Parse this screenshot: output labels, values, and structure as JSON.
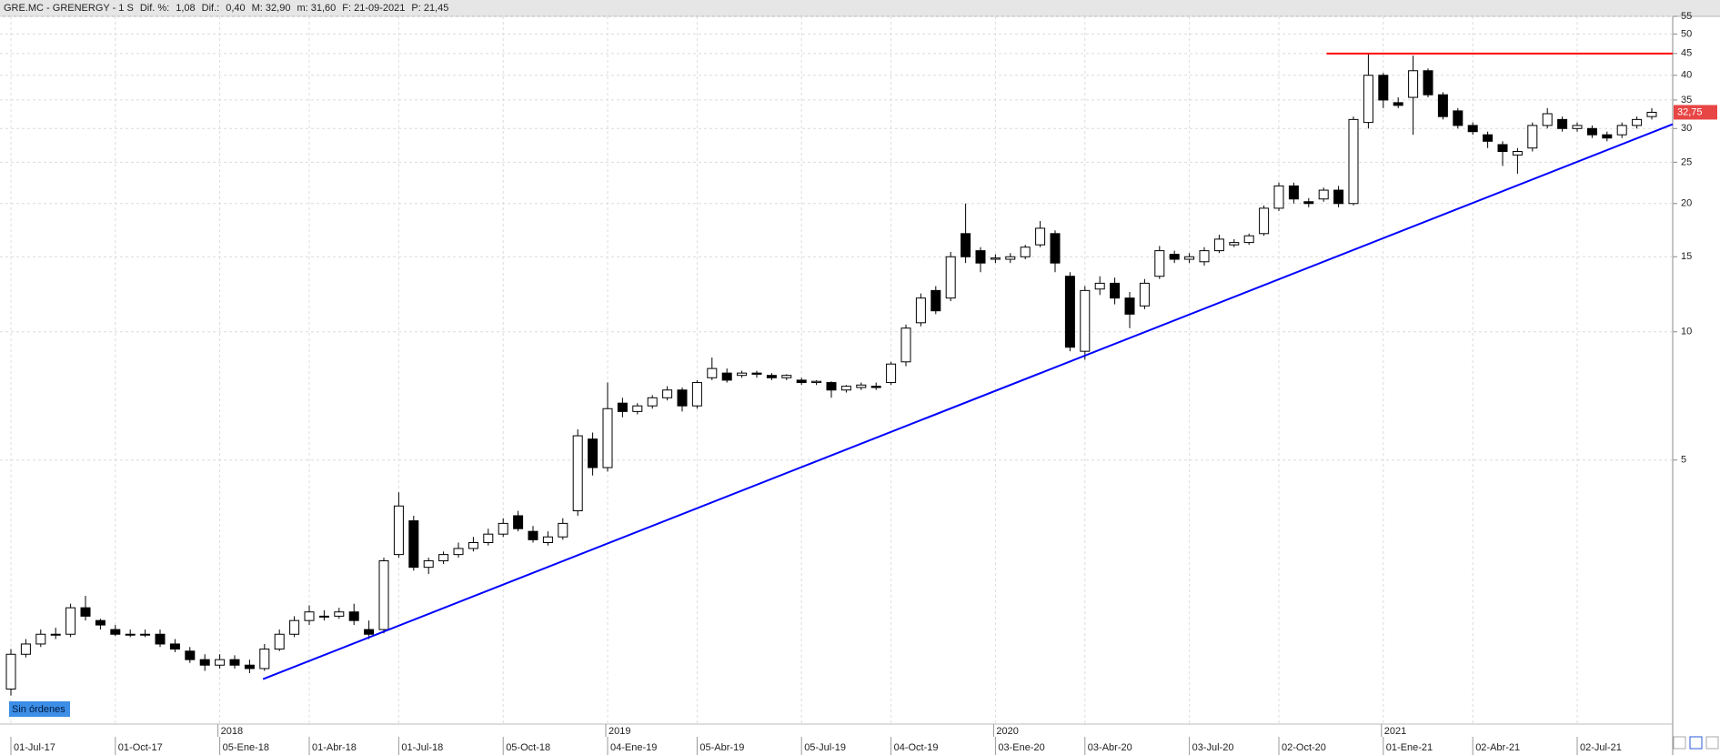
{
  "header": {
    "items": [
      {
        "text": "GRE.MC - GRENERGY -  1 S",
        "color": "#000000"
      },
      {
        "text": "Dif. %:",
        "color": "#000000"
      },
      {
        "text": "1,08",
        "color": "#3a7bd5"
      },
      {
        "text": "Dif.:",
        "color": "#000000"
      },
      {
        "text": "0,40",
        "color": "#3a7bd5"
      },
      {
        "text": "M: 32,90",
        "color": "#000000"
      },
      {
        "text": "m: 31,60",
        "color": "#000000"
      },
      {
        "text": "F: 21-09-2021",
        "color": "#000000"
      },
      {
        "text": "P: 21,45",
        "color": "#e02020"
      }
    ]
  },
  "controls": {
    "orders_button": "Sin órdenes"
  },
  "chart_data": {
    "type": "candlestick",
    "log_scale": true,
    "grid": true,
    "candle_colors": {
      "up": "#ffffff",
      "down": "#000000",
      "outline": "#000000"
    },
    "categories": [
      "01-Jul-17",
      null,
      null,
      null,
      null,
      null,
      null,
      "01-Oct-17",
      null,
      null,
      null,
      null,
      null,
      null,
      "05-Ene-18",
      null,
      null,
      null,
      null,
      null,
      "01-Abr-18",
      null,
      null,
      null,
      null,
      null,
      "01-Jul-18",
      null,
      null,
      null,
      null,
      null,
      null,
      "05-Oct-18",
      null,
      null,
      null,
      null,
      null,
      null,
      "04-Ene-19",
      null,
      null,
      null,
      null,
      null,
      "05-Abr-19",
      null,
      null,
      null,
      null,
      null,
      null,
      "05-Jul-19",
      null,
      null,
      null,
      null,
      null,
      "04-Oct-19",
      null,
      null,
      null,
      null,
      null,
      null,
      "03-Ene-20",
      null,
      null,
      null,
      null,
      null,
      "03-Abr-20",
      null,
      null,
      null,
      null,
      null,
      null,
      "03-Jul-20",
      null,
      null,
      null,
      null,
      null,
      "02-Oct-20",
      null,
      null,
      null,
      null,
      null,
      null,
      "01-Ene-21",
      null,
      null,
      null,
      null,
      null,
      "02-Abr-21",
      null,
      null,
      null,
      null,
      null,
      null,
      "02-Jul-21",
      null,
      null,
      null,
      null,
      null
    ],
    "year_labels": [
      null,
      null,
      null,
      null,
      null,
      null,
      null,
      null,
      null,
      null,
      null,
      null,
      null,
      null,
      "2018",
      null,
      null,
      null,
      null,
      null,
      null,
      null,
      null,
      null,
      null,
      null,
      null,
      null,
      null,
      null,
      null,
      null,
      null,
      null,
      null,
      null,
      null,
      null,
      null,
      null,
      "2019",
      null,
      null,
      null,
      null,
      null,
      null,
      null,
      null,
      null,
      null,
      null,
      null,
      null,
      null,
      null,
      null,
      null,
      null,
      null,
      null,
      null,
      null,
      null,
      null,
      null,
      "2020",
      null,
      null,
      null,
      null,
      null,
      null,
      null,
      null,
      null,
      null,
      null,
      null,
      null,
      null,
      null,
      null,
      null,
      null,
      null,
      null,
      null,
      null,
      null,
      null,
      null,
      "2021",
      null,
      null,
      null,
      null,
      null,
      null,
      null,
      null,
      null,
      null,
      null,
      null,
      null,
      null,
      null,
      null,
      null,
      null
    ],
    "open": [
      1.45,
      1.75,
      1.85,
      1.95,
      1.95,
      2.25,
      2.1,
      2.0,
      1.95,
      1.95,
      1.95,
      1.85,
      1.78,
      1.7,
      1.65,
      1.7,
      1.65,
      1.62,
      1.8,
      1.95,
      2.1,
      2.15,
      2.15,
      2.2,
      2.0,
      2.0,
      3.0,
      3.6,
      2.8,
      2.9,
      3.0,
      3.1,
      3.2,
      3.35,
      3.7,
      3.4,
      3.2,
      3.3,
      3.8,
      5.6,
      4.8,
      6.8,
      6.5,
      6.7,
      7.0,
      7.3,
      6.7,
      7.8,
      8.0,
      7.9,
      8.0,
      7.9,
      7.8,
      7.7,
      7.6,
      7.6,
      7.3,
      7.4,
      7.45,
      7.6,
      8.5,
      10.5,
      12.5,
      12.0,
      17,
      15.5,
      14.8,
      14.8,
      15.0,
      16,
      17,
      13.5,
      9.0,
      12.6,
      13.0,
      12.0,
      11.5,
      13.5,
      15.2,
      14.8,
      14.6,
      15.5,
      16.0,
      16.2,
      17,
      19.5,
      22,
      20.2,
      20.5,
      21.5,
      20.0,
      31,
      40,
      34.5,
      35.5,
      41,
      36,
      33,
      30.5,
      29.0,
      27.5,
      26,
      27,
      30.5,
      31.5,
      30,
      30,
      29,
      29,
      30.5,
      32
    ],
    "high": [
      1.8,
      1.9,
      2.0,
      2.02,
      2.3,
      2.4,
      2.12,
      2.05,
      2.0,
      2.0,
      2.0,
      1.9,
      1.82,
      1.75,
      1.75,
      1.74,
      1.7,
      1.85,
      2.0,
      2.15,
      2.28,
      2.22,
      2.25,
      2.3,
      2.1,
      2.95,
      4.2,
      3.7,
      2.95,
      3.05,
      3.2,
      3.3,
      3.45,
      3.65,
      3.8,
      3.5,
      3.4,
      3.65,
      5.9,
      5.8,
      7.6,
      7.0,
      6.8,
      7.1,
      7.45,
      7.4,
      7.7,
      8.7,
      8.2,
      8.1,
      8.1,
      8.0,
      7.95,
      7.8,
      7.7,
      7.65,
      7.5,
      7.6,
      7.6,
      8.5,
      10.4,
      12.3,
      12.8,
      15.4,
      20,
      15.8,
      15.2,
      15.3,
      16.0,
      18.2,
      17.3,
      13.8,
      12.8,
      13.5,
      13.4,
      12.4,
      13.3,
      15.9,
      15.5,
      15.3,
      15.8,
      16.9,
      16.5,
      17.0,
      19.8,
      22.4,
      22.4,
      20.6,
      21.8,
      22.0,
      32,
      45,
      40.5,
      35.5,
      44.5,
      41.5,
      36.5,
      33.5,
      31,
      29.5,
      28,
      27,
      31,
      33.5,
      32,
      31,
      30.5,
      29.5,
      31,
      32,
      33.5
    ],
    "low": [
      1.4,
      1.72,
      1.82,
      1.9,
      1.92,
      2.1,
      2.0,
      1.93,
      1.92,
      1.92,
      1.82,
      1.77,
      1.67,
      1.6,
      1.62,
      1.62,
      1.58,
      1.6,
      1.78,
      1.92,
      2.05,
      2.1,
      2.12,
      2.05,
      1.9,
      1.96,
      2.95,
      2.75,
      2.7,
      2.85,
      2.95,
      3.05,
      3.15,
      3.3,
      3.4,
      3.2,
      3.15,
      3.25,
      3.7,
      4.6,
      4.7,
      6.3,
      6.4,
      6.6,
      6.9,
      6.5,
      6.6,
      7.7,
      7.6,
      7.8,
      7.8,
      7.7,
      7.7,
      7.5,
      7.5,
      7.0,
      7.2,
      7.3,
      7.3,
      7.5,
      8.3,
      10.3,
      11.0,
      11.8,
      14.5,
      13.8,
      14.5,
      14.5,
      14.8,
      15.8,
      13.8,
      9.0,
      8.6,
      12.2,
      11.6,
      10.2,
      11.3,
      13.3,
      14.5,
      14.5,
      14.3,
      15.3,
      15.8,
      16.0,
      16.8,
      19.2,
      20.0,
      19.6,
      20.2,
      19.6,
      19.8,
      30,
      33.5,
      33.5,
      29,
      35.5,
      31.5,
      30,
      29,
      27,
      24.5,
      23.5,
      26.5,
      30,
      29.5,
      29.5,
      28.5,
      28,
      28.5,
      30,
      31.5
    ],
    "close": [
      1.75,
      1.85,
      1.95,
      1.95,
      2.25,
      2.15,
      2.05,
      1.95,
      1.95,
      1.95,
      1.85,
      1.8,
      1.7,
      1.65,
      1.7,
      1.65,
      1.62,
      1.8,
      1.95,
      2.1,
      2.2,
      2.15,
      2.2,
      2.1,
      1.95,
      2.9,
      3.9,
      2.8,
      2.9,
      3.0,
      3.1,
      3.2,
      3.35,
      3.55,
      3.45,
      3.25,
      3.3,
      3.55,
      5.7,
      4.8,
      6.6,
      6.5,
      6.7,
      7.0,
      7.3,
      6.7,
      7.6,
      8.2,
      7.7,
      8.0,
      7.95,
      7.8,
      7.9,
      7.6,
      7.65,
      7.3,
      7.45,
      7.5,
      7.4,
      8.4,
      10.2,
      12.0,
      11.2,
      15.0,
      15.0,
      14.5,
      14.9,
      15.0,
      15.8,
      17.5,
      14.5,
      9.2,
      12.5,
      13.0,
      12.0,
      11.0,
      13.0,
      15.5,
      14.8,
      15.0,
      15.5,
      16.5,
      16.2,
      16.8,
      19.5,
      22.0,
      20.5,
      20.0,
      21.5,
      20.0,
      31.5,
      40,
      35,
      34,
      41,
      36,
      32,
      30.5,
      29.5,
      28.0,
      26.5,
      26.5,
      30.5,
      32.5,
      30.0,
      30.5,
      29.0,
      28.5,
      30.5,
      31.5,
      32.75
    ],
    "last_price_label": "32,75",
    "last_price_color": "#e84545",
    "ylim": [
      1.2,
      55
    ],
    "yticks": [
      5,
      10,
      15,
      20,
      25,
      30,
      35,
      40,
      45,
      50,
      55
    ],
    "lines": [
      {
        "color": "#ff0000",
        "x": [
          88.2,
          111.4
        ],
        "y": [
          45,
          45
        ]
      },
      {
        "color": "#0000ff",
        "x": [
          16.9,
          111.4
        ],
        "y": [
          1.53,
          30.7
        ]
      }
    ]
  }
}
